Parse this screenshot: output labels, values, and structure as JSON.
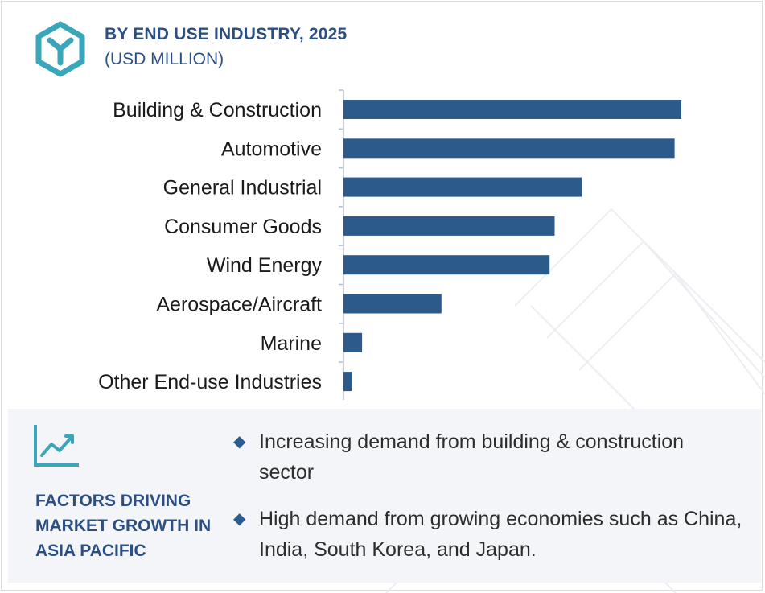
{
  "header": {
    "title": "BY END USE INDUSTRY, 2025",
    "subtitle": "(USD MILLION)",
    "logo_icon": "hexagon-logo-icon"
  },
  "colors": {
    "bar": "#2c5a8a",
    "accent": "#2b4f83",
    "icon": "#3aa6b9"
  },
  "chart_data": {
    "type": "bar",
    "orientation": "horizontal",
    "title": "BY END USE INDUSTRY, 2025",
    "subtitle": "(USD MILLION)",
    "categories": [
      "Building & Construction",
      "Automotive",
      "General Industrial",
      "Consumer Goods",
      "Wind Energy",
      "Aerospace/Aircraft",
      "Marine",
      "Other End-use Industries"
    ],
    "values": [
      100,
      98,
      70.5,
      62.5,
      61,
      29,
      5.5,
      2.5
    ],
    "value_axis_visible": false,
    "grid": false,
    "legend": "none"
  },
  "factors": {
    "icon": "trend-chart-icon",
    "title": "FACTORS DRIVING MARKET GROWTH IN ASIA PACIFIC",
    "bullets": [
      "Increasing demand from building & construction sector",
      "High demand from growing economies such as China, India, South Korea, and Japan."
    ]
  }
}
